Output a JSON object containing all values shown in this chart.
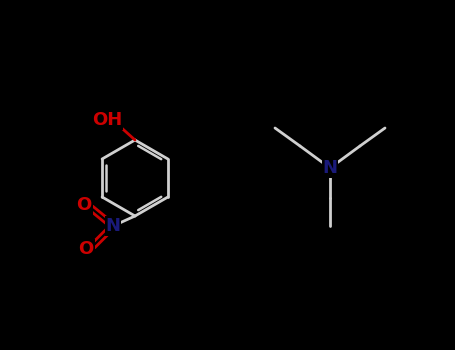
{
  "background_color": "#000000",
  "fig_width": 4.55,
  "fig_height": 3.5,
  "dpi": 100,
  "bond_color": "#cccccc",
  "ring_bond_color": "#bbbbbb",
  "O_color": "#cc0000",
  "N_nitro_color": "#1a1a7a",
  "N_amine_color": "#1a1a7a",
  "H_color": "#cc0000",
  "label_OH": "OH",
  "label_NO2_N": "N",
  "label_O1": "O",
  "label_O2": "O",
  "label_N_amine": "N"
}
